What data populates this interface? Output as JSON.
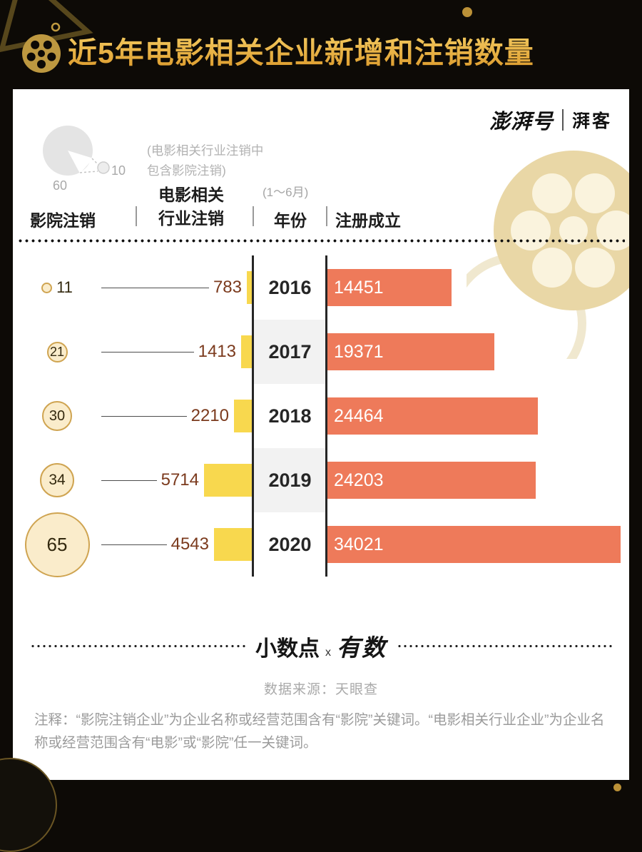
{
  "header": {
    "title": "近5年电影相关企业新增和注销数量"
  },
  "brand": {
    "main": "澎湃号",
    "sub": "湃客"
  },
  "legend": {
    "big": "60",
    "small": "10",
    "note1": "(电影相关行业注销中",
    "note2": "包含影院注销)"
  },
  "columns": {
    "cinema": "影院注销",
    "industry1": "电影相关",
    "industry2": "行业注销",
    "year": "年份",
    "year_note": "(1～6月)",
    "registered": "注册成立"
  },
  "chart_data": {
    "type": "bar",
    "orientation": "horizontal-diverging",
    "categories": [
      "2016",
      "2017",
      "2018",
      "2019",
      "2020"
    ],
    "series": [
      {
        "name": "影院注销",
        "values": [
          11,
          21,
          30,
          34,
          65
        ]
      },
      {
        "name": "电影相关行业注销",
        "values": [
          783,
          1413,
          2210,
          5714,
          4543
        ]
      },
      {
        "name": "注册成立",
        "values": [
          14451,
          19371,
          24464,
          24203,
          34021
        ]
      }
    ],
    "x_max": 34021,
    "grid": false,
    "legend_position": "column-headers",
    "colors": {
      "cinema_circle_fill": "#faeccb",
      "cinema_circle_border": "#cfa451",
      "industry_bar": "#f8d84e",
      "registered_bar": "#ee7a5a",
      "industry_value_text": "#7b3a1d",
      "registered_value_text": "#ffffff"
    }
  },
  "footer": {
    "logo_main": "小数点",
    "logo_x": "x",
    "logo_sub": "有数",
    "source": "数据来源：天眼查",
    "note": "注释：“影院注销企业”为企业名称或经营范围含有“影院”关键词。“电影相关行业企业”为企业名称或经营范围含有“电影”或“影院”任一关键词。"
  },
  "accent_colors": {
    "gold": "#c09a3f",
    "background": "#0d0a06",
    "card": "#ffffff"
  }
}
